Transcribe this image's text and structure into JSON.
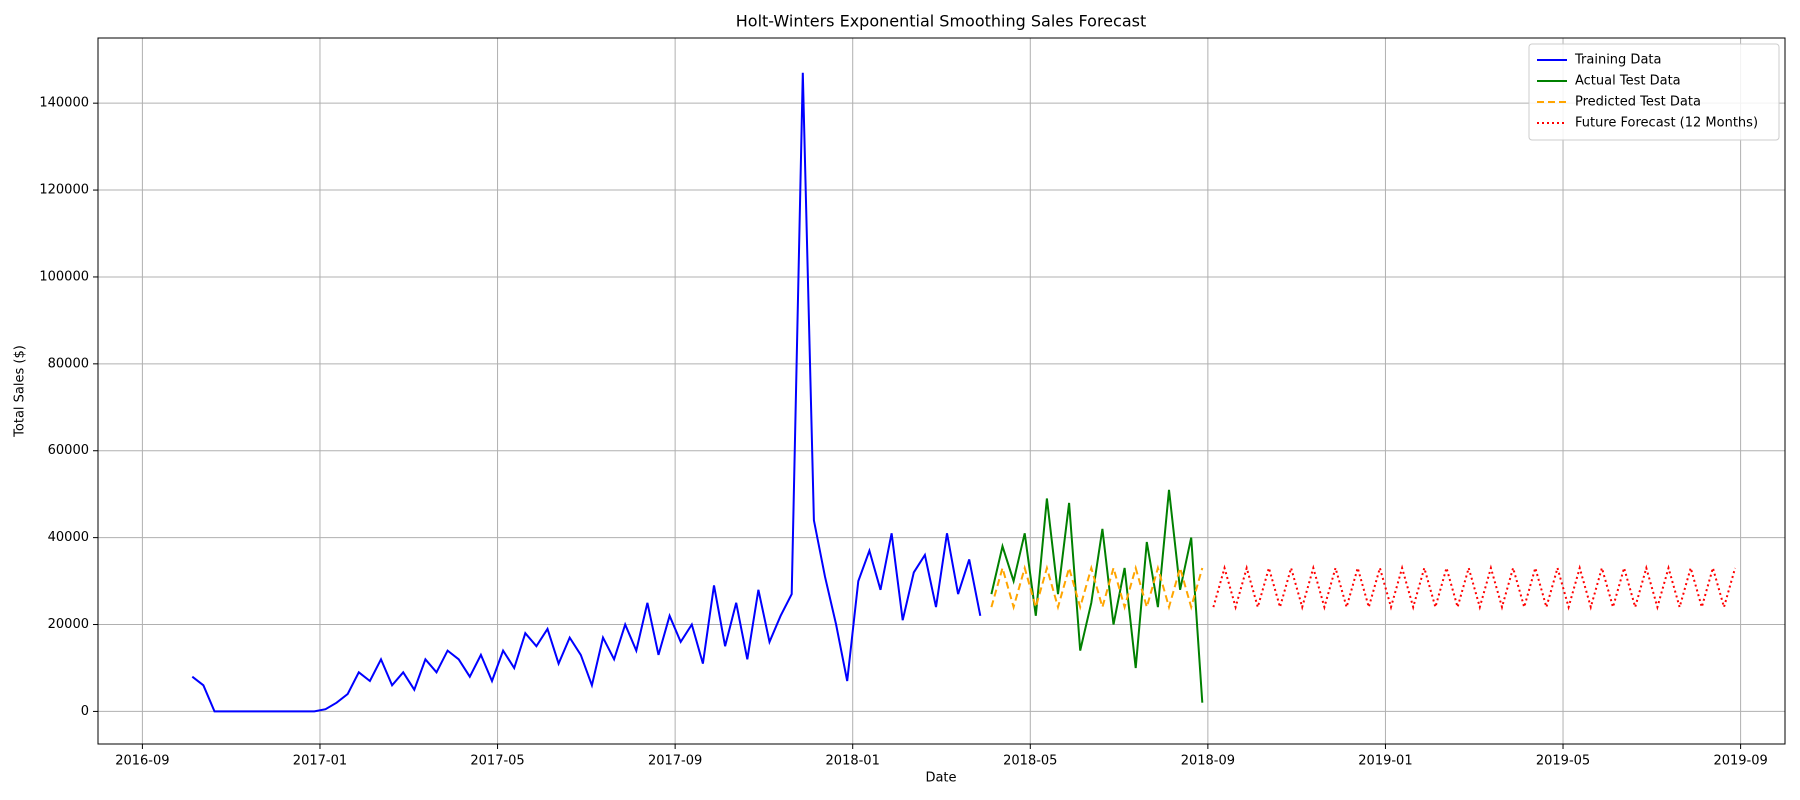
{
  "chart_data": {
    "type": "line",
    "title": "Holt-Winters Exponential Smoothing Sales Forecast",
    "x_label": "Date",
    "y_label": "Total Sales ($)",
    "xlim": [
      "2016-08",
      "2019-10"
    ],
    "xticks": [
      "2016-09",
      "2017-01",
      "2017-05",
      "2017-09",
      "2018-01",
      "2018-05",
      "2018-09",
      "2019-01",
      "2019-05",
      "2019-09"
    ],
    "ylim": [
      -7500,
      155000
    ],
    "yticks": [
      0,
      20000,
      40000,
      60000,
      80000,
      100000,
      120000,
      140000
    ],
    "grid": true,
    "legend": "upper right",
    "series": [
      {
        "name": "Training Data",
        "color": "#0000ff",
        "style": "solid",
        "x": [
          "2016-10",
          "2016-10",
          "2016-10",
          "2016-10",
          "2016-11",
          "2016-11",
          "2016-11",
          "2016-11",
          "2016-12",
          "2016-12",
          "2016-12",
          "2016-12",
          "2017-01",
          "2017-01",
          "2017-01",
          "2017-01",
          "2017-02",
          "2017-02",
          "2017-02",
          "2017-02",
          "2017-03",
          "2017-03",
          "2017-03",
          "2017-03",
          "2017-04",
          "2017-04",
          "2017-04",
          "2017-04",
          "2017-05",
          "2017-05",
          "2017-05",
          "2017-05",
          "2017-06",
          "2017-06",
          "2017-06",
          "2017-06",
          "2017-07",
          "2017-07",
          "2017-07",
          "2017-07",
          "2017-08",
          "2017-08",
          "2017-08",
          "2017-08",
          "2017-09",
          "2017-09",
          "2017-09",
          "2017-09",
          "2017-10",
          "2017-10",
          "2017-10",
          "2017-10",
          "2017-11",
          "2017-11",
          "2017-11",
          "2017-11",
          "2017-12",
          "2017-12",
          "2017-12",
          "2017-12",
          "2018-01",
          "2018-01",
          "2018-01",
          "2018-01",
          "2018-02",
          "2018-02",
          "2018-02",
          "2018-02",
          "2018-03",
          "2018-03",
          "2018-03",
          "2018-03"
        ],
        "values": [
          8000,
          6000,
          0,
          0,
          0,
          0,
          0,
          0,
          0,
          0,
          0,
          0,
          500,
          2000,
          4000,
          9000,
          7000,
          12000,
          6000,
          9000,
          5000,
          12000,
          9000,
          14000,
          12000,
          8000,
          13000,
          7000,
          14000,
          10000,
          18000,
          15000,
          19000,
          11000,
          17000,
          13000,
          6000,
          17000,
          12000,
          20000,
          14000,
          25000,
          13000,
          22000,
          16000,
          20000,
          11000,
          29000,
          15000,
          25000,
          12000,
          28000,
          16000,
          22000,
          27000,
          147000,
          44000,
          31000,
          20000,
          7000,
          30000,
          37000,
          28000,
          41000,
          21000,
          32000,
          36000,
          24000,
          41000,
          27000,
          35000,
          22000
        ]
      },
      {
        "name": "Actual Test Data",
        "color": "#008000",
        "style": "solid",
        "x": [
          "2018-04",
          "2018-04",
          "2018-04",
          "2018-04",
          "2018-05",
          "2018-05",
          "2018-05",
          "2018-05",
          "2018-06",
          "2018-06",
          "2018-06",
          "2018-06",
          "2018-07",
          "2018-07",
          "2018-07",
          "2018-07",
          "2018-08",
          "2018-08",
          "2018-08",
          "2018-08"
        ],
        "values": [
          27000,
          38000,
          30000,
          41000,
          22000,
          49000,
          27000,
          48000,
          14000,
          25000,
          42000,
          20000,
          33000,
          10000,
          39000,
          24000,
          51000,
          28000,
          40000,
          2000
        ]
      },
      {
        "name": "Predicted Test Data",
        "color": "#ffa500",
        "style": "dashed",
        "x": [
          "2018-04",
          "2018-04",
          "2018-04",
          "2018-04",
          "2018-05",
          "2018-05",
          "2018-05",
          "2018-05",
          "2018-06",
          "2018-06",
          "2018-06",
          "2018-06",
          "2018-07",
          "2018-07",
          "2018-07",
          "2018-07",
          "2018-08",
          "2018-08",
          "2018-08",
          "2018-08"
        ],
        "values": [
          24000,
          33000,
          24000,
          33000,
          24000,
          33000,
          24000,
          33000,
          24000,
          33000,
          24000,
          33000,
          24000,
          33000,
          24000,
          33000,
          24000,
          33000,
          24000,
          33000
        ]
      },
      {
        "name": "Future Forecast (12 Months)",
        "color": "#ff0000",
        "style": "dotted",
        "x": [
          "2018-09",
          "2018-09",
          "2018-09",
          "2018-09",
          "2018-10",
          "2018-10",
          "2018-10",
          "2018-10",
          "2018-11",
          "2018-11",
          "2018-11",
          "2018-11",
          "2018-12",
          "2018-12",
          "2018-12",
          "2018-12",
          "2019-01",
          "2019-01",
          "2019-01",
          "2019-01",
          "2019-02",
          "2019-02",
          "2019-02",
          "2019-02",
          "2019-03",
          "2019-03",
          "2019-03",
          "2019-03",
          "2019-04",
          "2019-04",
          "2019-04",
          "2019-04",
          "2019-05",
          "2019-05",
          "2019-05",
          "2019-05",
          "2019-06",
          "2019-06",
          "2019-06",
          "2019-06",
          "2019-07",
          "2019-07",
          "2019-07",
          "2019-07",
          "2019-08",
          "2019-08",
          "2019-08",
          "2019-08"
        ],
        "values": [
          24000,
          33000,
          24000,
          33000,
          24000,
          33000,
          24000,
          33000,
          24000,
          33000,
          24000,
          33000,
          24000,
          33000,
          24000,
          33000,
          24000,
          33000,
          24000,
          33000,
          24000,
          33000,
          24000,
          33000,
          24000,
          33000,
          24000,
          33000,
          24000,
          33000,
          24000,
          33000,
          24000,
          33000,
          24000,
          33000,
          24000,
          33000,
          24000,
          33000,
          24000,
          33000,
          24000,
          33000,
          24000,
          33000,
          24000,
          33000
        ]
      }
    ]
  }
}
